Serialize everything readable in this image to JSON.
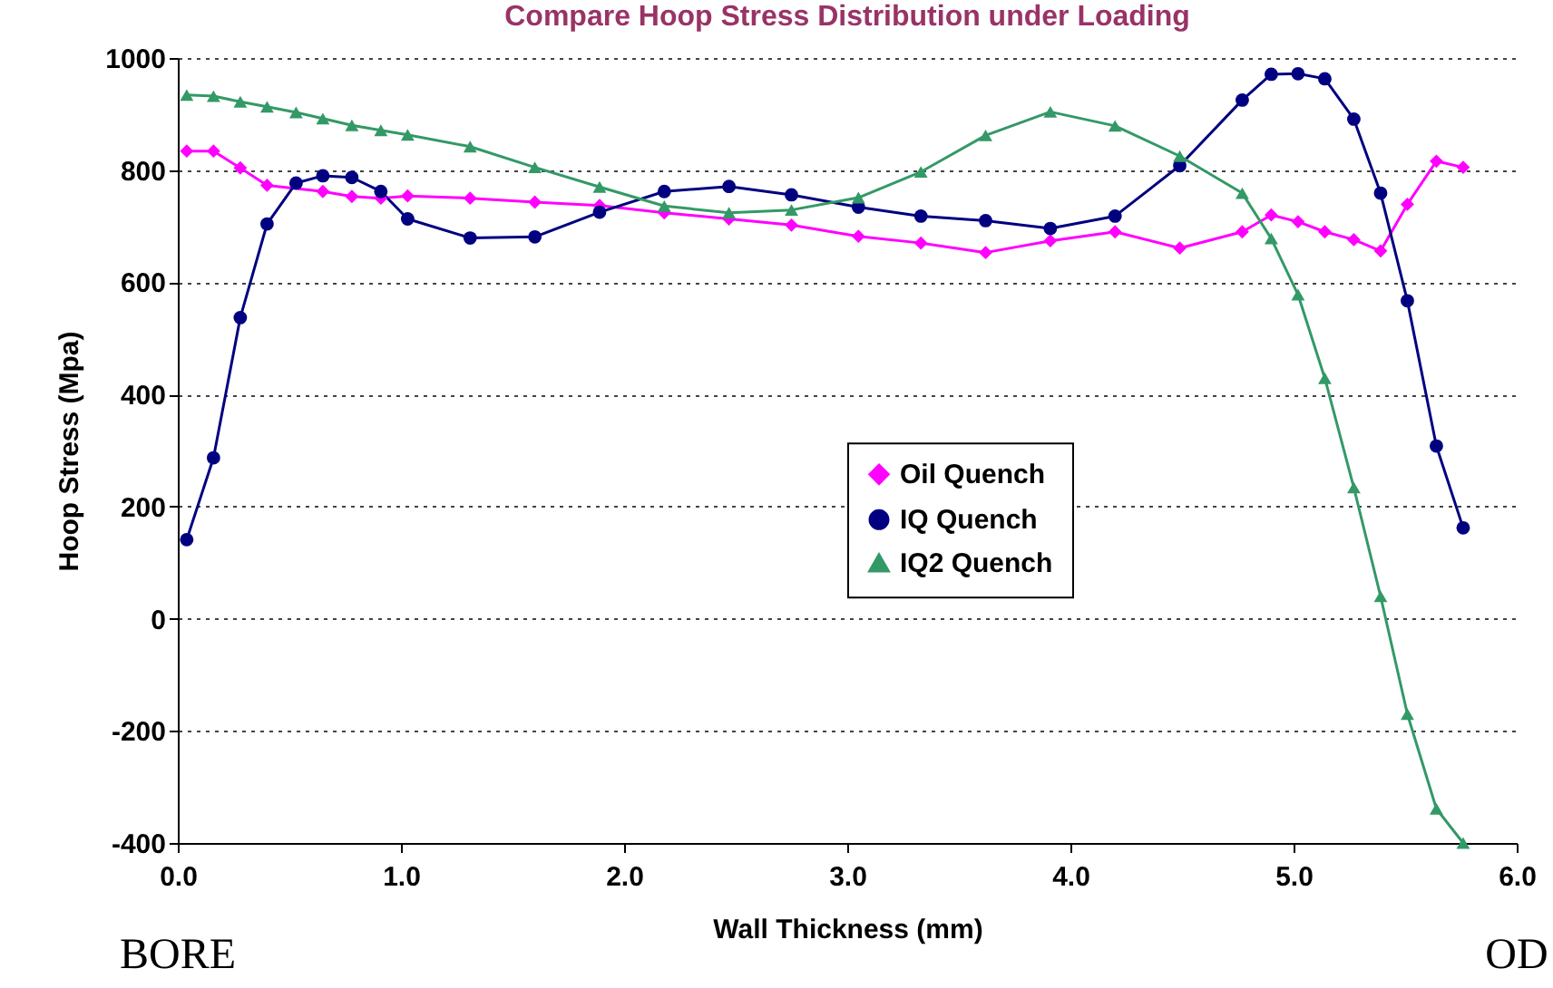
{
  "chart_data": {
    "type": "line",
    "title": "Compare Hoop Stress Distribution under Loading",
    "xlabel": "Wall Thickness (mm)",
    "ylabel": "Hoop Stress (Mpa)",
    "annotations": [
      "BORE",
      "OD"
    ],
    "x": [
      0.04,
      0.16,
      0.28,
      0.4,
      0.53,
      0.65,
      0.78,
      0.91,
      1.03,
      1.31,
      1.6,
      1.89,
      2.18,
      2.47,
      2.75,
      3.05,
      3.33,
      3.62,
      3.91,
      4.2,
      4.49,
      4.77,
      4.9,
      5.02,
      5.14,
      5.27,
      5.39,
      5.51,
      5.64,
      5.76
    ],
    "series": [
      {
        "name": "Oil Quench",
        "color": "#ff00ff",
        "marker": "diamond",
        "values": [
          834,
          834,
          804,
          773,
          null,
          762,
          753,
          750,
          754,
          750,
          743,
          737,
          724,
          713,
          702,
          682,
          670,
          653,
          674,
          690,
          661,
          690,
          720,
          708,
          690,
          676,
          656,
          739,
          816,
          805
        ]
      },
      {
        "name": "IQ Quench",
        "color": "#000080",
        "marker": "circle",
        "values": [
          141,
          287,
          537,
          704,
          777,
          790,
          787,
          762,
          713,
          679,
          681,
          725,
          762,
          771,
          756,
          734,
          718,
          710,
          696,
          718,
          808,
          925,
          971,
          972,
          963,
          891,
          759,
          567,
          308,
          162
        ]
      },
      {
        "name": "IQ2 Quench",
        "color": "#339966",
        "marker": "triangle",
        "values": [
          934,
          932,
          922,
          913,
          903,
          892,
          880,
          871,
          863,
          842,
          805,
          770,
          736,
          724,
          729,
          751,
          797,
          862,
          904,
          879,
          825,
          759,
          678,
          578,
          429,
          234,
          40,
          -170,
          -339,
          -400
        ]
      }
    ],
    "xlim": [
      0,
      6
    ],
    "xticks": [
      {
        "value": 0,
        "label": "0.0"
      },
      {
        "value": 1,
        "label": "1.0"
      },
      {
        "value": 2,
        "label": "2.0"
      },
      {
        "value": 3,
        "label": "3.0"
      },
      {
        "value": 4,
        "label": "4.0"
      },
      {
        "value": 5,
        "label": "5.0"
      },
      {
        "value": 6,
        "label": "6.0"
      }
    ],
    "ylim": [
      -400,
      1000
    ],
    "yticks": [
      -400,
      -200,
      0,
      200,
      400,
      600,
      800,
      1000
    ],
    "grid": "y",
    "legend": "center",
    "line_style": "solid"
  }
}
